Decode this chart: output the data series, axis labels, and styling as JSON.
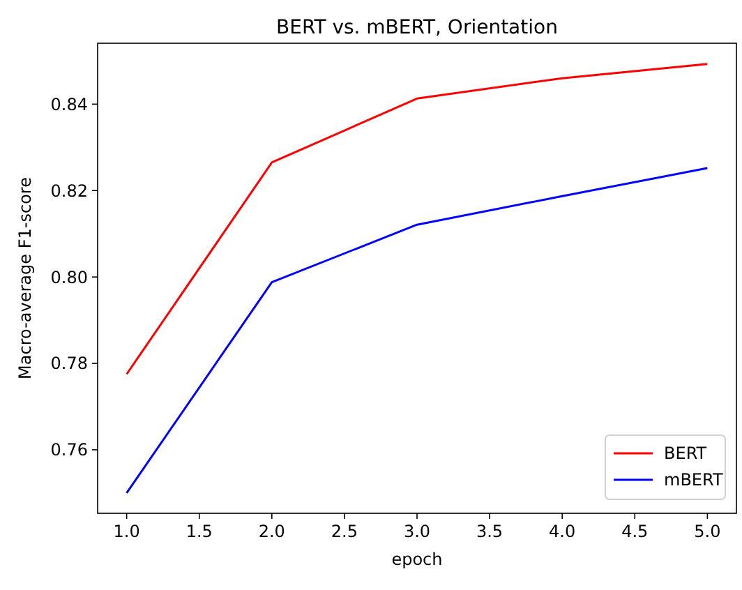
{
  "chart_data": {
    "type": "line",
    "title": "BERT vs. mBERT, Orientation",
    "xlabel": "epoch",
    "ylabel": "Macro-average F1-score",
    "x": [
      1,
      2,
      3,
      4,
      5
    ],
    "series": [
      {
        "name": "BERT",
        "color": "#ff0000",
        "values": [
          0.7775,
          0.8265,
          0.8413,
          0.846,
          0.8493
        ]
      },
      {
        "name": "mBERT",
        "color": "#0000ff",
        "values": [
          0.75,
          0.7988,
          0.8121,
          0.8187,
          0.8252
        ]
      }
    ],
    "xlim": [
      0.8,
      5.2
    ],
    "xticks": [
      {
        "value": 1,
        "label": "1.0"
      },
      {
        "value": 1.5,
        "label": "1.5"
      },
      {
        "value": 2,
        "label": "2.0"
      },
      {
        "value": 2.5,
        "label": "2.5"
      },
      {
        "value": 3,
        "label": "3.0"
      },
      {
        "value": 3.5,
        "label": "3.5"
      },
      {
        "value": 4,
        "label": "4.0"
      },
      {
        "value": 4.5,
        "label": "4.5"
      },
      {
        "value": 5,
        "label": "5.0"
      }
    ],
    "ylim": [
      0.7453,
      0.8541
    ],
    "yticks": [
      {
        "value": 0.76,
        "label": "0.76"
      },
      {
        "value": 0.78,
        "label": "0.78"
      },
      {
        "value": 0.8,
        "label": "0.80"
      },
      {
        "value": 0.82,
        "label": "0.82"
      },
      {
        "value": 0.84,
        "label": "0.84"
      }
    ],
    "legend": "bottom right",
    "grid": false,
    "marker": "none",
    "line_style": "solid"
  }
}
